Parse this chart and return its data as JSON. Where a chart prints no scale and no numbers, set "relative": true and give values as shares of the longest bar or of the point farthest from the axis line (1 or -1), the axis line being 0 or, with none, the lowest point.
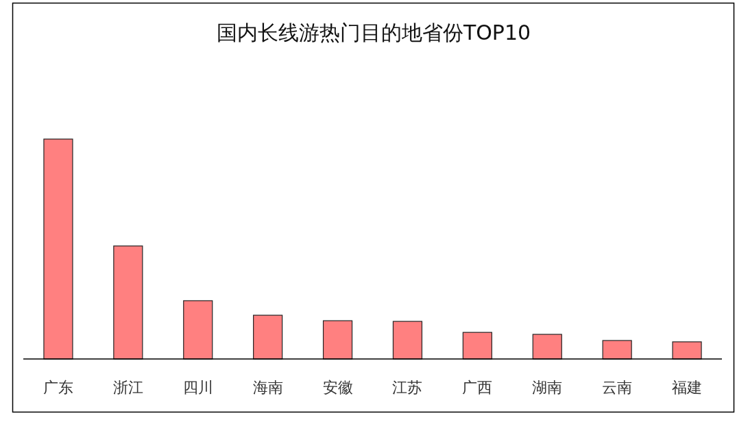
{
  "chart_data": {
    "type": "bar",
    "title": "国内长线游热门目的地省份TOP10",
    "categories": [
      "广东",
      "浙江",
      "四川",
      "海南",
      "安徽",
      "江苏",
      "广西",
      "湖南",
      "云南",
      "福建"
    ],
    "values": [
      1,
      0.514,
      0.265,
      0.199,
      0.174,
      0.171,
      0.121,
      0.112,
      0.084,
      0.078
    ],
    "color": "#ff8080",
    "relative": true
  }
}
